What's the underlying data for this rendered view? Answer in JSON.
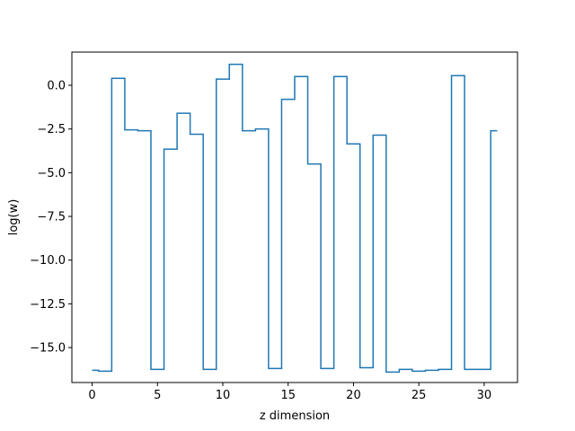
{
  "chart_data": {
    "type": "line",
    "drawstyle": "steps-mid",
    "title": "",
    "xlabel": "z dimension",
    "ylabel": "log(w)",
    "xlim": [
      -1.55,
      32.55
    ],
    "ylim": [
      -17.0,
      1.9
    ],
    "xticks": [
      0,
      5,
      10,
      15,
      20,
      25,
      30
    ],
    "xtick_labels": [
      "0",
      "5",
      "10",
      "15",
      "20",
      "25",
      "30"
    ],
    "yticks": [
      0.0,
      -2.5,
      -5.0,
      -7.5,
      -10.0,
      -12.5,
      -15.0
    ],
    "ytick_labels": [
      "0.0",
      "−2.5",
      "−5.0",
      "−7.5",
      "−10.0",
      "−12.5",
      "−15.0"
    ],
    "grid": false,
    "series": [
      {
        "color": "#1f77b4",
        "x": [
          0,
          1,
          2,
          3,
          4,
          5,
          6,
          7,
          8,
          9,
          10,
          11,
          12,
          13,
          14,
          15,
          16,
          17,
          18,
          19,
          20,
          21,
          22,
          23,
          24,
          25,
          26,
          27,
          28,
          29,
          30,
          31
        ],
        "values": [
          -16.3,
          -16.35,
          0.4,
          -2.55,
          -2.6,
          -16.25,
          -3.65,
          -1.6,
          -2.8,
          -16.25,
          0.35,
          1.2,
          -2.6,
          -2.5,
          -16.2,
          -0.8,
          0.5,
          -4.5,
          -16.2,
          0.5,
          -3.35,
          -16.15,
          -2.85,
          -16.4,
          -16.25,
          -16.35,
          -16.3,
          -16.25,
          0.55,
          -16.25,
          -16.25,
          -2.6
        ]
      }
    ]
  }
}
